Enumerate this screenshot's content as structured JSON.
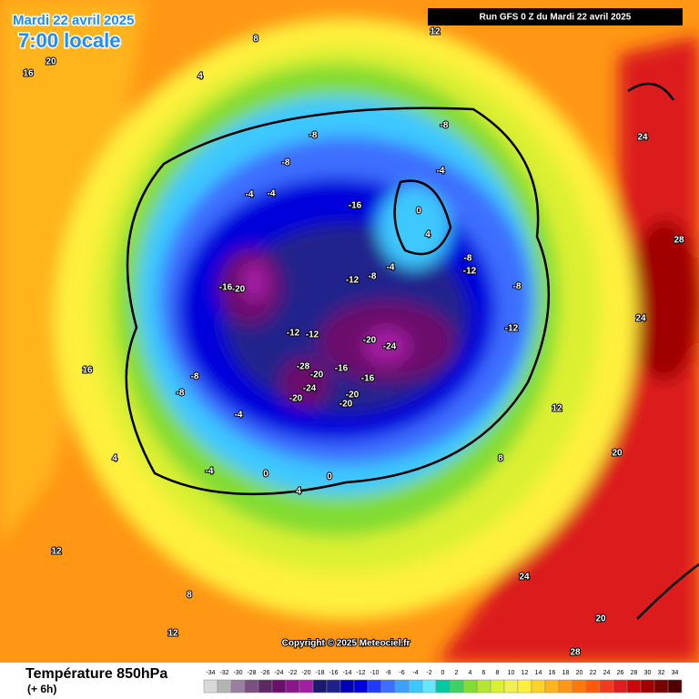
{
  "header": {
    "date": "Mardi 22 avril 2025",
    "time": "7:00 locale",
    "run": "Run GFS 0 Z du Mardi 22 avril 2025"
  },
  "map": {
    "labels": [
      -20,
      -16,
      -24,
      -20,
      -12,
      -12,
      -28,
      -20,
      -24,
      -20,
      -16,
      -16,
      -20,
      -20,
      -16,
      -12,
      -8,
      -12,
      -8,
      -8,
      -12,
      -8,
      -8,
      -4,
      -4,
      -4,
      -8,
      0,
      4,
      -4,
      -8,
      -8,
      -4,
      -4,
      0,
      4,
      0,
      4,
      8,
      4,
      12,
      16,
      20,
      24,
      28,
      24,
      20,
      24,
      20,
      28,
      12,
      8,
      12,
      16,
      12,
      8
    ],
    "copyright": "Copyright © 2025 Meteociel.fr"
  },
  "legend": {
    "title": "Température 850hPa",
    "subtitle": "(+ 6h)",
    "scale": [
      -34,
      -32,
      -30,
      -28,
      -26,
      -24,
      -22,
      -20,
      -18,
      -16,
      -14,
      -12,
      -10,
      -8,
      -6,
      -4,
      -2,
      0,
      2,
      4,
      6,
      8,
      10,
      12,
      14,
      16,
      18,
      20,
      22,
      24,
      26,
      28,
      30,
      32,
      34
    ],
    "colors": [
      "#d9d9d9",
      "#b4b4b4",
      "#9a7f9e",
      "#7a4e7e",
      "#5e2862",
      "#6c0f6c",
      "#8b158b",
      "#a21ea2",
      "#1a1a6e",
      "#20208c",
      "#0000b4",
      "#0000dc",
      "#1e3cff",
      "#3c6eff",
      "#3ca0ff",
      "#3cc8ff",
      "#64e6ff",
      "#00c8a0",
      "#3cd264",
      "#82dc32",
      "#b4e632",
      "#dcf032",
      "#f0f050",
      "#fff03c",
      "#ffd228",
      "#ffb41e",
      "#ff9614",
      "#ff780a",
      "#ff5a0a",
      "#f03c1e",
      "#dc1e1e",
      "#c80a0a",
      "#a00000",
      "#780000",
      "#500000"
    ]
  }
}
